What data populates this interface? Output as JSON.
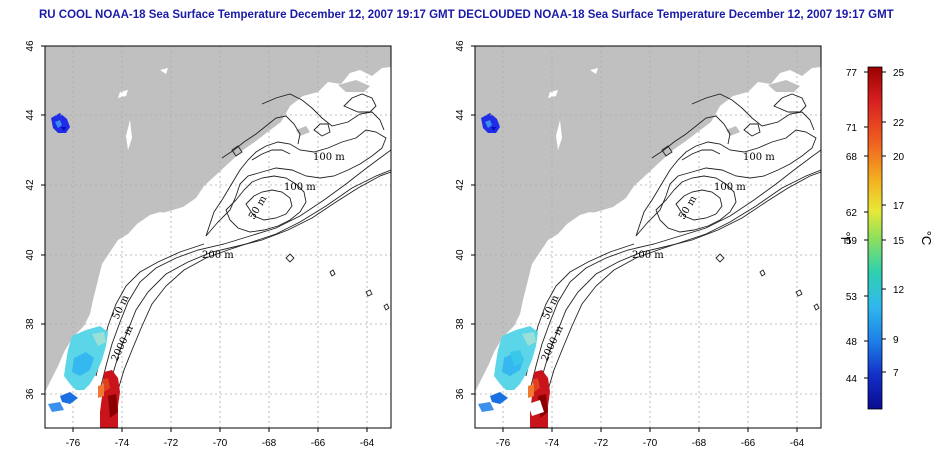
{
  "maps": [
    {
      "title": "RU COOL NOAA-18 Sea Surface Temperature December 12, 2007 19:17 GMT",
      "contours": {
        "c100a": "100 m",
        "c100b": "100 m",
        "c50a": "50 m",
        "c200": "200 m",
        "c50b": "50 m",
        "c2000": "2000 m"
      }
    },
    {
      "title": "DECLOUDED NOAA-18 Sea Surface Temperature December 12, 2007 19:17 GMT",
      "contours": {
        "c100a": "100 m",
        "c100b": "100 m",
        "c50a": "50 m",
        "c200": "200 m",
        "c50b": "50 m",
        "c2000": "2000 m"
      }
    }
  ],
  "axes": {
    "lon_ticks": [
      "-76",
      "-74",
      "-72",
      "-70",
      "-68",
      "-66",
      "-64"
    ],
    "lat_ticks": [
      "46",
      "44",
      "42",
      "40",
      "38",
      "36"
    ]
  },
  "colorbar": {
    "fahrenheit_label": "°F",
    "celsius_label": "°C",
    "fahrenheit_ticks": [
      "77",
      "71",
      "68",
      "62",
      "59",
      "53",
      "48",
      "44"
    ],
    "celsius_ticks": [
      "25",
      "22",
      "20",
      "17",
      "15",
      "12",
      "9",
      "7"
    ],
    "colors": [
      "#9a0000",
      "#d82020",
      "#f06020",
      "#f4b020",
      "#e8e838",
      "#8ee05c",
      "#2ed0b0",
      "#30b8ee",
      "#1e80e8",
      "#1230c8",
      "#0a0a90"
    ]
  }
}
